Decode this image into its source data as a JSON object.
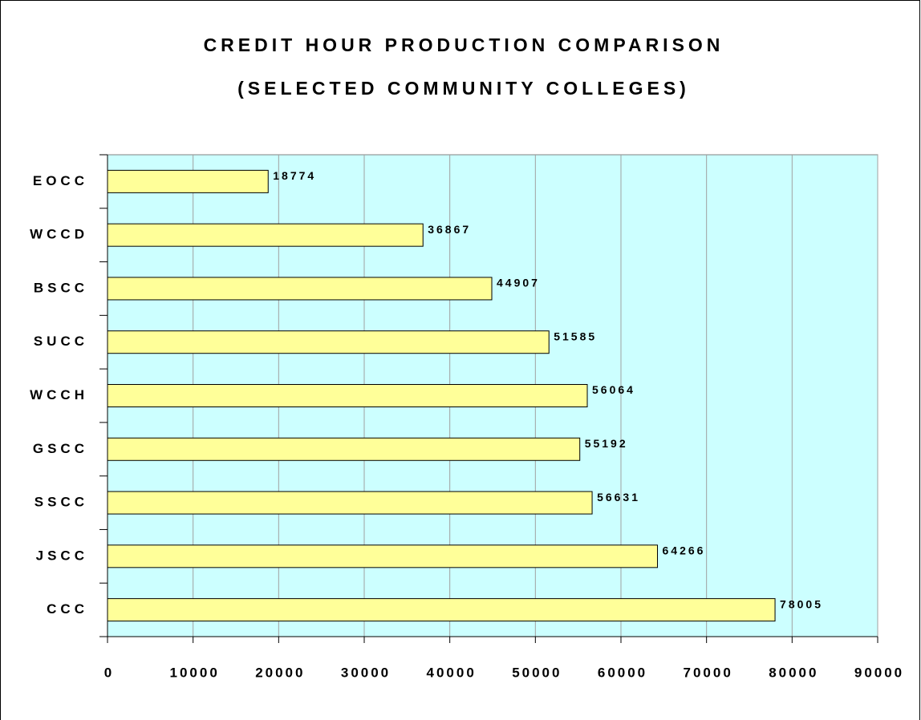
{
  "chart_data": {
    "type": "bar",
    "orientation": "horizontal",
    "title": [
      "CREDIT HOUR PRODUCTION COMPARISON",
      "(SELECTED COMMUNITY COLLEGES)"
    ],
    "categories": [
      "EOCC",
      "WCCD",
      "BSCC",
      "SUCC",
      "WCCH",
      "GSCC",
      "SSCC",
      "JSCC",
      "CCC"
    ],
    "values": [
      18774,
      36867,
      44907,
      51585,
      56064,
      55192,
      56631,
      64266,
      78005
    ],
    "color": "#ffff99",
    "xlim": [
      0,
      90000
    ],
    "xticks": [
      0,
      10000,
      20000,
      30000,
      40000,
      50000,
      60000,
      70000,
      80000,
      90000
    ],
    "grid": true,
    "plot_background": "#ccffff"
  }
}
